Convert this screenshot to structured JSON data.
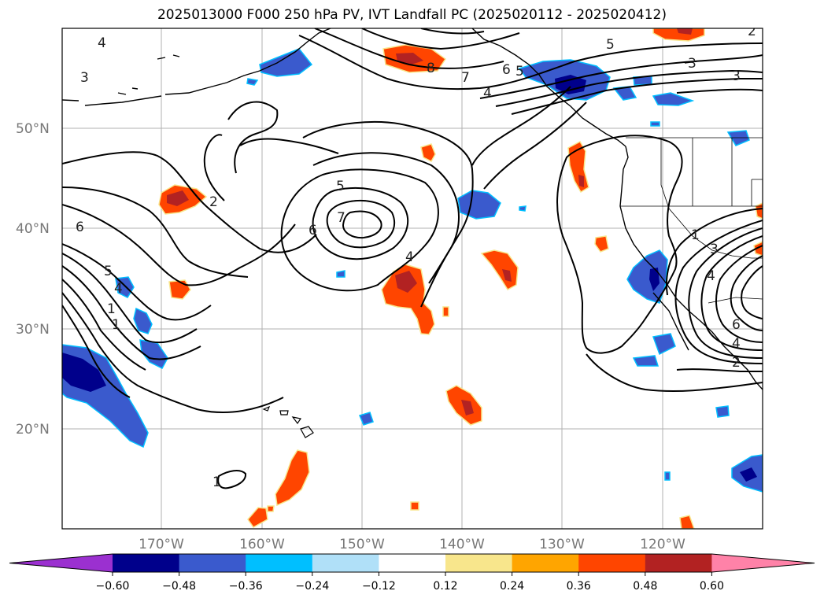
{
  "title": "2025013000 F000 250 hPa PV, IVT Landfall PC (2025020112 - 2025020412)",
  "lat_labels": [
    "50°N",
    "40°N",
    "30°N",
    "20°N"
  ],
  "lon_labels": [
    "170°W",
    "160°W",
    "150°W",
    "140°W",
    "130°W",
    "120°W"
  ],
  "contour_labels": [
    "4",
    "3",
    "2",
    "5",
    "6",
    "1",
    "4",
    "5",
    "7",
    "6",
    "4",
    "5",
    "3",
    "1",
    "8",
    "7",
    "4",
    "6",
    "5",
    "3",
    "2",
    "1",
    "3",
    "4",
    "6",
    "4",
    "2",
    "1"
  ],
  "colorbar": {
    "ticks": [
      "−0.60",
      "−0.48",
      "−0.36",
      "−0.24",
      "−0.12",
      "0.12",
      "0.24",
      "0.36",
      "0.48",
      "0.60"
    ],
    "colors": [
      "#9b30d0",
      "#00008b",
      "#3a5acd",
      "#00bfff",
      "#b0e0f8",
      "#ffffff",
      "#f8e68c",
      "#ffa500",
      "#ff4500",
      "#b22222",
      "#ff82a8"
    ]
  }
}
